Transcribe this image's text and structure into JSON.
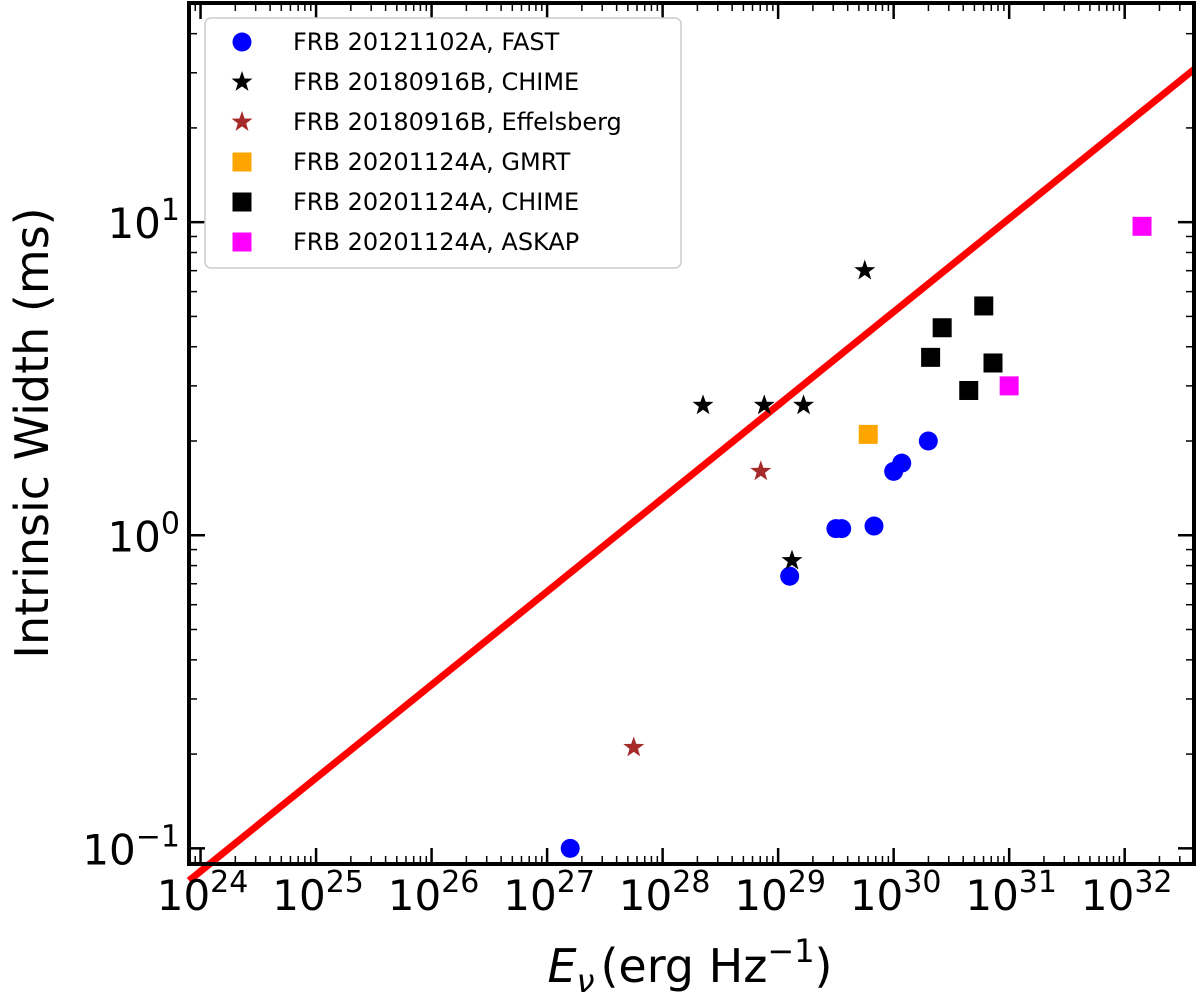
{
  "chart_data": {
    "type": "scatter",
    "title": "",
    "xlabel": {
      "var": "E",
      "sub": "ν",
      "unit": "(erg Hz",
      "exp": "−1",
      "close": ")"
    },
    "ylabel": "Intrinsic Width (ms)",
    "xscale": "log",
    "yscale": "log",
    "xlim_exp": [
      23.9,
      32.6
    ],
    "ylim_exp": [
      -1.05,
      1.7
    ],
    "x_ticks": [
      {
        "base": "10",
        "exp": "24"
      },
      {
        "base": "10",
        "exp": "25"
      },
      {
        "base": "10",
        "exp": "26"
      },
      {
        "base": "10",
        "exp": "27"
      },
      {
        "base": "10",
        "exp": "28"
      },
      {
        "base": "10",
        "exp": "29"
      },
      {
        "base": "10",
        "exp": "30"
      },
      {
        "base": "10",
        "exp": "31"
      },
      {
        "base": "10",
        "exp": "32"
      }
    ],
    "y_ticks": [
      {
        "base": "10",
        "exp": "−1"
      },
      {
        "base": "10",
        "exp": "0"
      },
      {
        "base": "10",
        "exp": "1"
      }
    ],
    "legend_position": "top-left",
    "series": [
      {
        "name": "FRB 20121102A, FAST",
        "marker": "circle",
        "color": "#0000ff",
        "points": [
          [
            27.2,
            0.1
          ],
          [
            29.1,
            0.74
          ],
          [
            29.5,
            1.05
          ],
          [
            29.55,
            1.05
          ],
          [
            29.83,
            1.07
          ],
          [
            30.0,
            1.6
          ],
          [
            30.07,
            1.7
          ],
          [
            30.3,
            2.0
          ]
        ]
      },
      {
        "name": "FRB 20180916B, CHIME",
        "marker": "star",
        "color": "#000000",
        "points": [
          [
            28.35,
            2.6
          ],
          [
            28.88,
            2.6
          ],
          [
            29.22,
            2.6
          ],
          [
            29.12,
            0.83
          ],
          [
            29.75,
            7.0
          ]
        ]
      },
      {
        "name": "FRB 20180916B, Effelsberg",
        "marker": "star",
        "color": "#a52a2a",
        "points": [
          [
            27.75,
            0.21
          ],
          [
            28.85,
            1.6
          ]
        ]
      },
      {
        "name": "FRB 20201124A, GMRT",
        "marker": "square",
        "color": "#ffa500",
        "points": [
          [
            29.78,
            2.1
          ]
        ]
      },
      {
        "name": "FRB 20201124A, CHIME",
        "marker": "square",
        "color": "#000000",
        "points": [
          [
            30.32,
            3.7
          ],
          [
            30.42,
            4.6
          ],
          [
            30.65,
            2.9
          ],
          [
            30.78,
            5.4
          ],
          [
            30.86,
            3.55
          ]
        ]
      },
      {
        "name": "FRB 20201124A, ASKAP",
        "marker": "square",
        "color": "#ff00ff",
        "points": [
          [
            31.0,
            3.0
          ],
          [
            32.15,
            9.7
          ]
        ]
      }
    ],
    "fit_line": {
      "color": "#ff0000",
      "log_x_start": 23.9,
      "log_y_start": -1.103,
      "slope": 0.2978
    }
  }
}
